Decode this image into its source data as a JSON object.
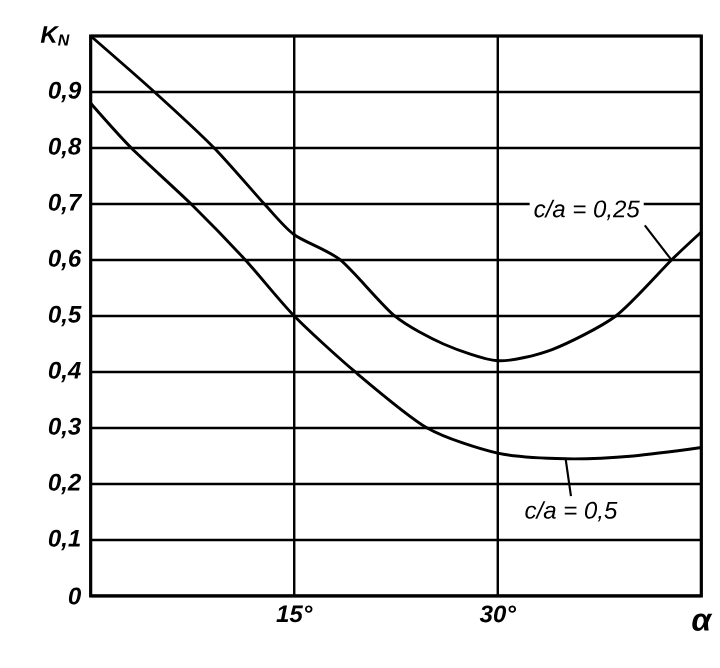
{
  "chart_data": {
    "type": "line",
    "ylabel": "K$_{N}$",
    "xlabel": "α",
    "xlim": [
      0,
      45
    ],
    "ylim": [
      0,
      1.0
    ],
    "xticks": [
      {
        "value": 15,
        "label": "15°"
      },
      {
        "value": 30,
        "label": "30°"
      }
    ],
    "yticks": [
      {
        "value": 0,
        "label": "0"
      },
      {
        "value": 0.1,
        "label": "0,1"
      },
      {
        "value": 0.2,
        "label": "0,2"
      },
      {
        "value": 0.3,
        "label": "0,3"
      },
      {
        "value": 0.4,
        "label": "0,4"
      },
      {
        "value": 0.5,
        "label": "0,5"
      },
      {
        "value": 0.6,
        "label": "0,6"
      },
      {
        "value": 0.7,
        "label": "0,7"
      },
      {
        "value": 0.8,
        "label": "0,8"
      },
      {
        "value": 0.9,
        "label": "0,9"
      },
      {
        "value": 1.0,
        "label": null
      }
    ],
    "grid": true,
    "marker": "none",
    "line_style": "solid",
    "series": [
      {
        "name": "c/a = 0,25",
        "color": "#000000",
        "x": [
          0,
          4.7,
          9.1,
          12.8,
          15,
          18.4,
          22.4,
          26,
          30,
          34,
          38.7,
          42.8,
          45
        ],
        "values": [
          1.0,
          0.9,
          0.8,
          0.7,
          0.645,
          0.6,
          0.5,
          0.45,
          0.42,
          0.44,
          0.5,
          0.6,
          0.65
        ]
      },
      {
        "name": "c/a = 0,5",
        "color": "#000000",
        "x": [
          0,
          3.0,
          7.4,
          11.4,
          15,
          19.5,
          24.8,
          30,
          35,
          40,
          45
        ],
        "values": [
          0.88,
          0.8,
          0.7,
          0.6,
          0.5,
          0.4,
          0.3,
          0.255,
          0.245,
          0.25,
          0.265
        ]
      }
    ]
  }
}
